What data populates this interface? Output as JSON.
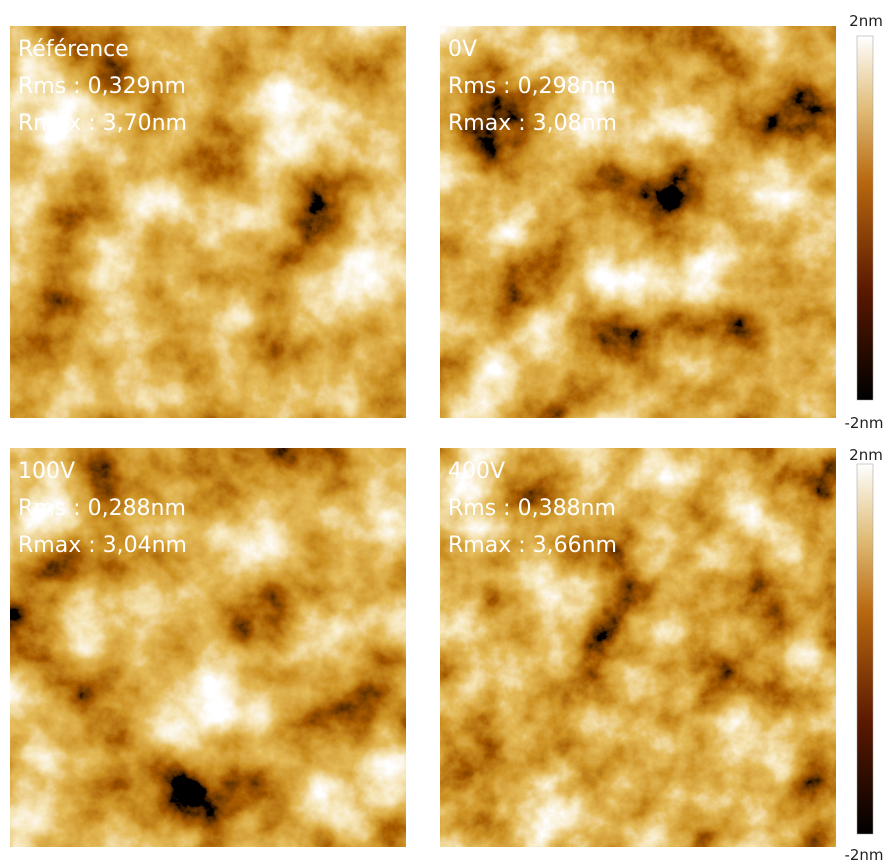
{
  "panels": [
    {
      "label": "Référence",
      "rms": "Rms : 0,329nm",
      "rmax": "Rmax : 3,70nm"
    },
    {
      "label": "0V",
      "rms": "Rms : 0,298nm",
      "rmax": "Rmax : 3,08nm"
    },
    {
      "label": "100V",
      "rms": "Rms : 0,288nm",
      "rmax": "Rmax : 3,04nm"
    },
    {
      "label": "400V",
      "rms": "Rms : 0,388nm",
      "rmax": "Rmax : 3,66nm"
    }
  ],
  "colorbars": [
    {
      "top": "2nm",
      "bottom": "-2nm"
    },
    {
      "top": "2nm",
      "bottom": "-2nm"
    }
  ]
}
